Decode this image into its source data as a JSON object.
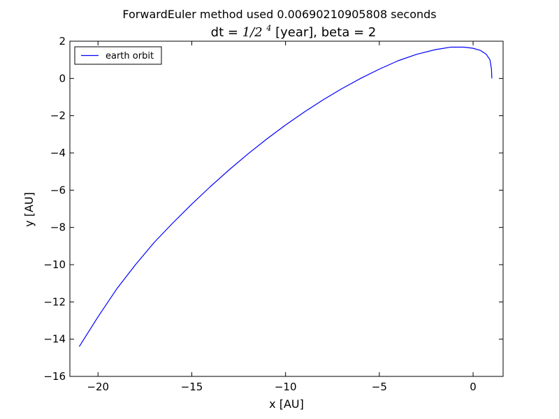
{
  "figure": {
    "suptitle": "ForwardEuler method used 0.00690210905808 seconds",
    "title_prefix": "dt = ",
    "title_math_base": "1/2",
    "title_math_exp": "4",
    "title_suffix": "[year], beta = 2"
  },
  "chart_data": {
    "type": "line",
    "xlabel": "x [AU]",
    "ylabel": "y [AU]",
    "xlim": [
      -21.5,
      1.6
    ],
    "ylim": [
      -16,
      2
    ],
    "xticks": [
      -20,
      -15,
      -10,
      -5,
      0
    ],
    "xtick_labels": [
      "−20",
      "−15",
      "−10",
      "−5",
      "0"
    ],
    "yticks": [
      2,
      0,
      -2,
      -4,
      -6,
      -8,
      -10,
      -12,
      -14,
      -16
    ],
    "ytick_labels": [
      "2",
      "0",
      "−2",
      "−4",
      "−6",
      "−8",
      "−10",
      "−12",
      "−14",
      "−16"
    ],
    "grid": false,
    "legend_position": "top-left",
    "series": [
      {
        "name": "earth orbit",
        "color": "#0000ff",
        "x": [
          1.0,
          0.98,
          0.9,
          0.7,
          0.4,
          0.0,
          -0.5,
          -1.2,
          -2.0,
          -3.0,
          -4.0,
          -5.0,
          -6.0,
          -7.0,
          -8.0,
          -9.0,
          -10.0,
          -11.0,
          -12.0,
          -13.0,
          -14.0,
          -15.0,
          -16.0,
          -17.0,
          -18.0,
          -19.0,
          -20.0,
          -21.0
        ],
        "y": [
          0.0,
          0.5,
          1.0,
          1.3,
          1.5,
          1.62,
          1.68,
          1.68,
          1.55,
          1.3,
          0.95,
          0.5,
          0.0,
          -0.55,
          -1.15,
          -1.8,
          -2.5,
          -3.25,
          -4.05,
          -4.9,
          -5.8,
          -6.75,
          -7.75,
          -8.8,
          -10.0,
          -11.3,
          -12.8,
          -14.4
        ]
      }
    ]
  }
}
